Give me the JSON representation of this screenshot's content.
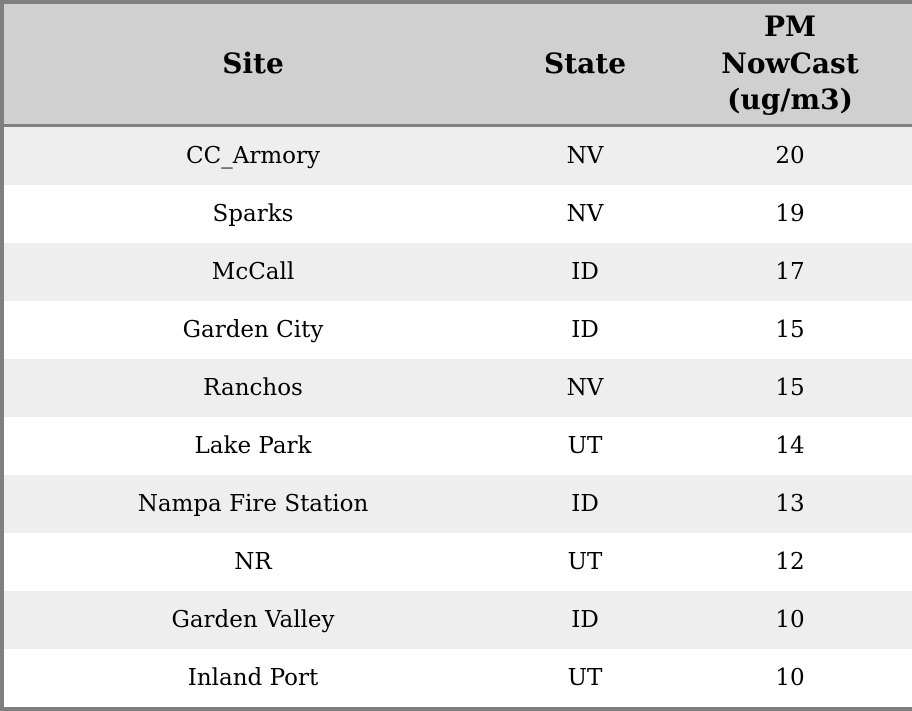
{
  "colors": {
    "header_bg": "#d0d0d0",
    "row_stripe_bg": "#eeeeee",
    "row_bg": "#ffffff",
    "border": "#7f7f7f",
    "text": "#000000"
  },
  "table": {
    "columns": [
      {
        "label": "Site"
      },
      {
        "label": "State"
      },
      {
        "label": "PM\nNowCast\n(ug/m3)"
      }
    ],
    "rows": [
      {
        "site": "CC_Armory",
        "state": "NV",
        "pm_nowcast": "20"
      },
      {
        "site": "Sparks",
        "state": "NV",
        "pm_nowcast": "19"
      },
      {
        "site": "McCall",
        "state": "ID",
        "pm_nowcast": "17"
      },
      {
        "site": "Garden City",
        "state": "ID",
        "pm_nowcast": "15"
      },
      {
        "site": "Ranchos",
        "state": "NV",
        "pm_nowcast": "15"
      },
      {
        "site": "Lake Park",
        "state": "UT",
        "pm_nowcast": "14"
      },
      {
        "site": "Nampa Fire Station",
        "state": "ID",
        "pm_nowcast": "13"
      },
      {
        "site": "NR",
        "state": "UT",
        "pm_nowcast": "12"
      },
      {
        "site": "Garden Valley",
        "state": "ID",
        "pm_nowcast": "10"
      },
      {
        "site": "Inland Port",
        "state": "UT",
        "pm_nowcast": "10"
      }
    ]
  },
  "chart_data": {
    "type": "table",
    "title": "",
    "columns": [
      "Site",
      "State",
      "PM NowCast (ug/m3)"
    ],
    "rows": [
      [
        "CC_Armory",
        "NV",
        20
      ],
      [
        "Sparks",
        "NV",
        19
      ],
      [
        "McCall",
        "ID",
        17
      ],
      [
        "Garden City",
        "ID",
        15
      ],
      [
        "Ranchos",
        "NV",
        15
      ],
      [
        "Lake Park",
        "UT",
        14
      ],
      [
        "Nampa Fire Station",
        "ID",
        13
      ],
      [
        "NR",
        "UT",
        12
      ],
      [
        "Garden Valley",
        "ID",
        10
      ],
      [
        "Inland Port",
        "UT",
        10
      ]
    ],
    "layout_hints": {
      "header_background": "#d0d0d0",
      "alternating_row_colors": [
        "#eeeeee",
        "#ffffff"
      ],
      "cell_text_align": "center",
      "sorted_by": "PM NowCast (ug/m3) descending"
    }
  }
}
